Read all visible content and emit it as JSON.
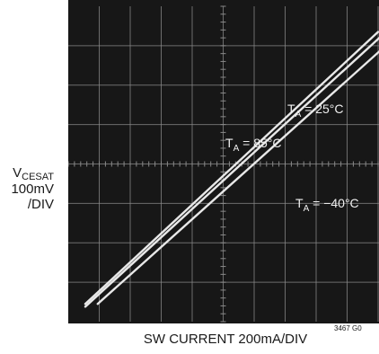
{
  "chart_data": {
    "type": "line",
    "title": "",
    "ylabel": {
      "main": "V",
      "sub": "CESAT",
      "line2": "100mV",
      "line3": "/DIV"
    },
    "xlabel": "SW CURRENT 200mA/DIV",
    "figure_code": "3467 G0",
    "x_divisions": 10,
    "y_divisions": 8,
    "grid": true,
    "xlim": [
      0,
      10
    ],
    "ylim": [
      0,
      8
    ],
    "series": [
      {
        "name": "T_A = 85°C",
        "label_main": "T",
        "label_sub": "A",
        "label_rest": " = 85°C",
        "x": [
          0.55,
          10.0
        ],
        "y": [
          0.45,
          7.35
        ]
      },
      {
        "name": "T_A = 25°C",
        "label_main": "T",
        "label_sub": "A",
        "label_rest": " = 25°C",
        "x": [
          0.55,
          10.25
        ],
        "y": [
          0.38,
          7.35
        ]
      },
      {
        "name": "T_A = −40°C",
        "label_main": "T",
        "label_sub": "A",
        "label_rest": " = −40°C",
        "x": [
          0.95,
          10.6
        ],
        "y": [
          0.45,
          7.25
        ]
      }
    ],
    "line_color": "#e8e8e8",
    "grid_color": "#8a8a8a",
    "background_color": "#171717"
  }
}
